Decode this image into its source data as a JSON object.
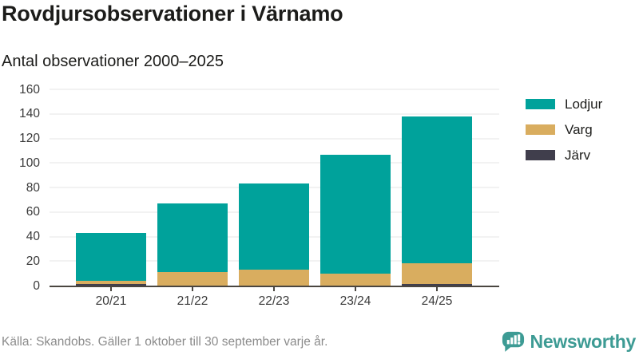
{
  "header": {
    "title": "Rovdjursobservationer i Värnamo",
    "subtitle": "Antal observationer 2000–2025"
  },
  "chart_data": {
    "type": "bar",
    "stacked": true,
    "title": "Rovdjursobservationer i Värnamo",
    "subtitle": "Antal observationer 2000–2025",
    "categories": [
      "20/21",
      "21/22",
      "22/23",
      "23/24",
      "24/25"
    ],
    "series": [
      {
        "name": "Lodjur",
        "color": "#00a29b",
        "values": [
          39,
          56,
          70,
          97,
          120
        ]
      },
      {
        "name": "Varg",
        "color": "#d9ad5f",
        "values": [
          3,
          11,
          13,
          10,
          17
        ]
      },
      {
        "name": "Järv",
        "color": "#403e4c",
        "values": [
          1,
          0,
          0,
          0,
          1
        ]
      }
    ],
    "stack_totals": [
      43,
      67,
      83,
      107,
      138
    ],
    "xlabel": "",
    "ylabel": "",
    "ylim": [
      0,
      160
    ],
    "yticks": [
      0,
      20,
      40,
      60,
      80,
      100,
      120,
      140,
      160
    ],
    "grid": true,
    "legend_position": "right"
  },
  "legend": {
    "items": [
      {
        "label": "Lodjur",
        "color": "#00a29b"
      },
      {
        "label": "Varg",
        "color": "#d9ad5f"
      },
      {
        "label": "Järv",
        "color": "#403e4c"
      }
    ]
  },
  "footer": {
    "source": "Källa: Skandobs. Gäller 1 oktober till 30 september varje år.",
    "brand_name": "Newsworthy",
    "brand_color": "#3d9b94"
  },
  "colors": {
    "axis": "#4a4640",
    "grid": "#e4e4e4"
  }
}
